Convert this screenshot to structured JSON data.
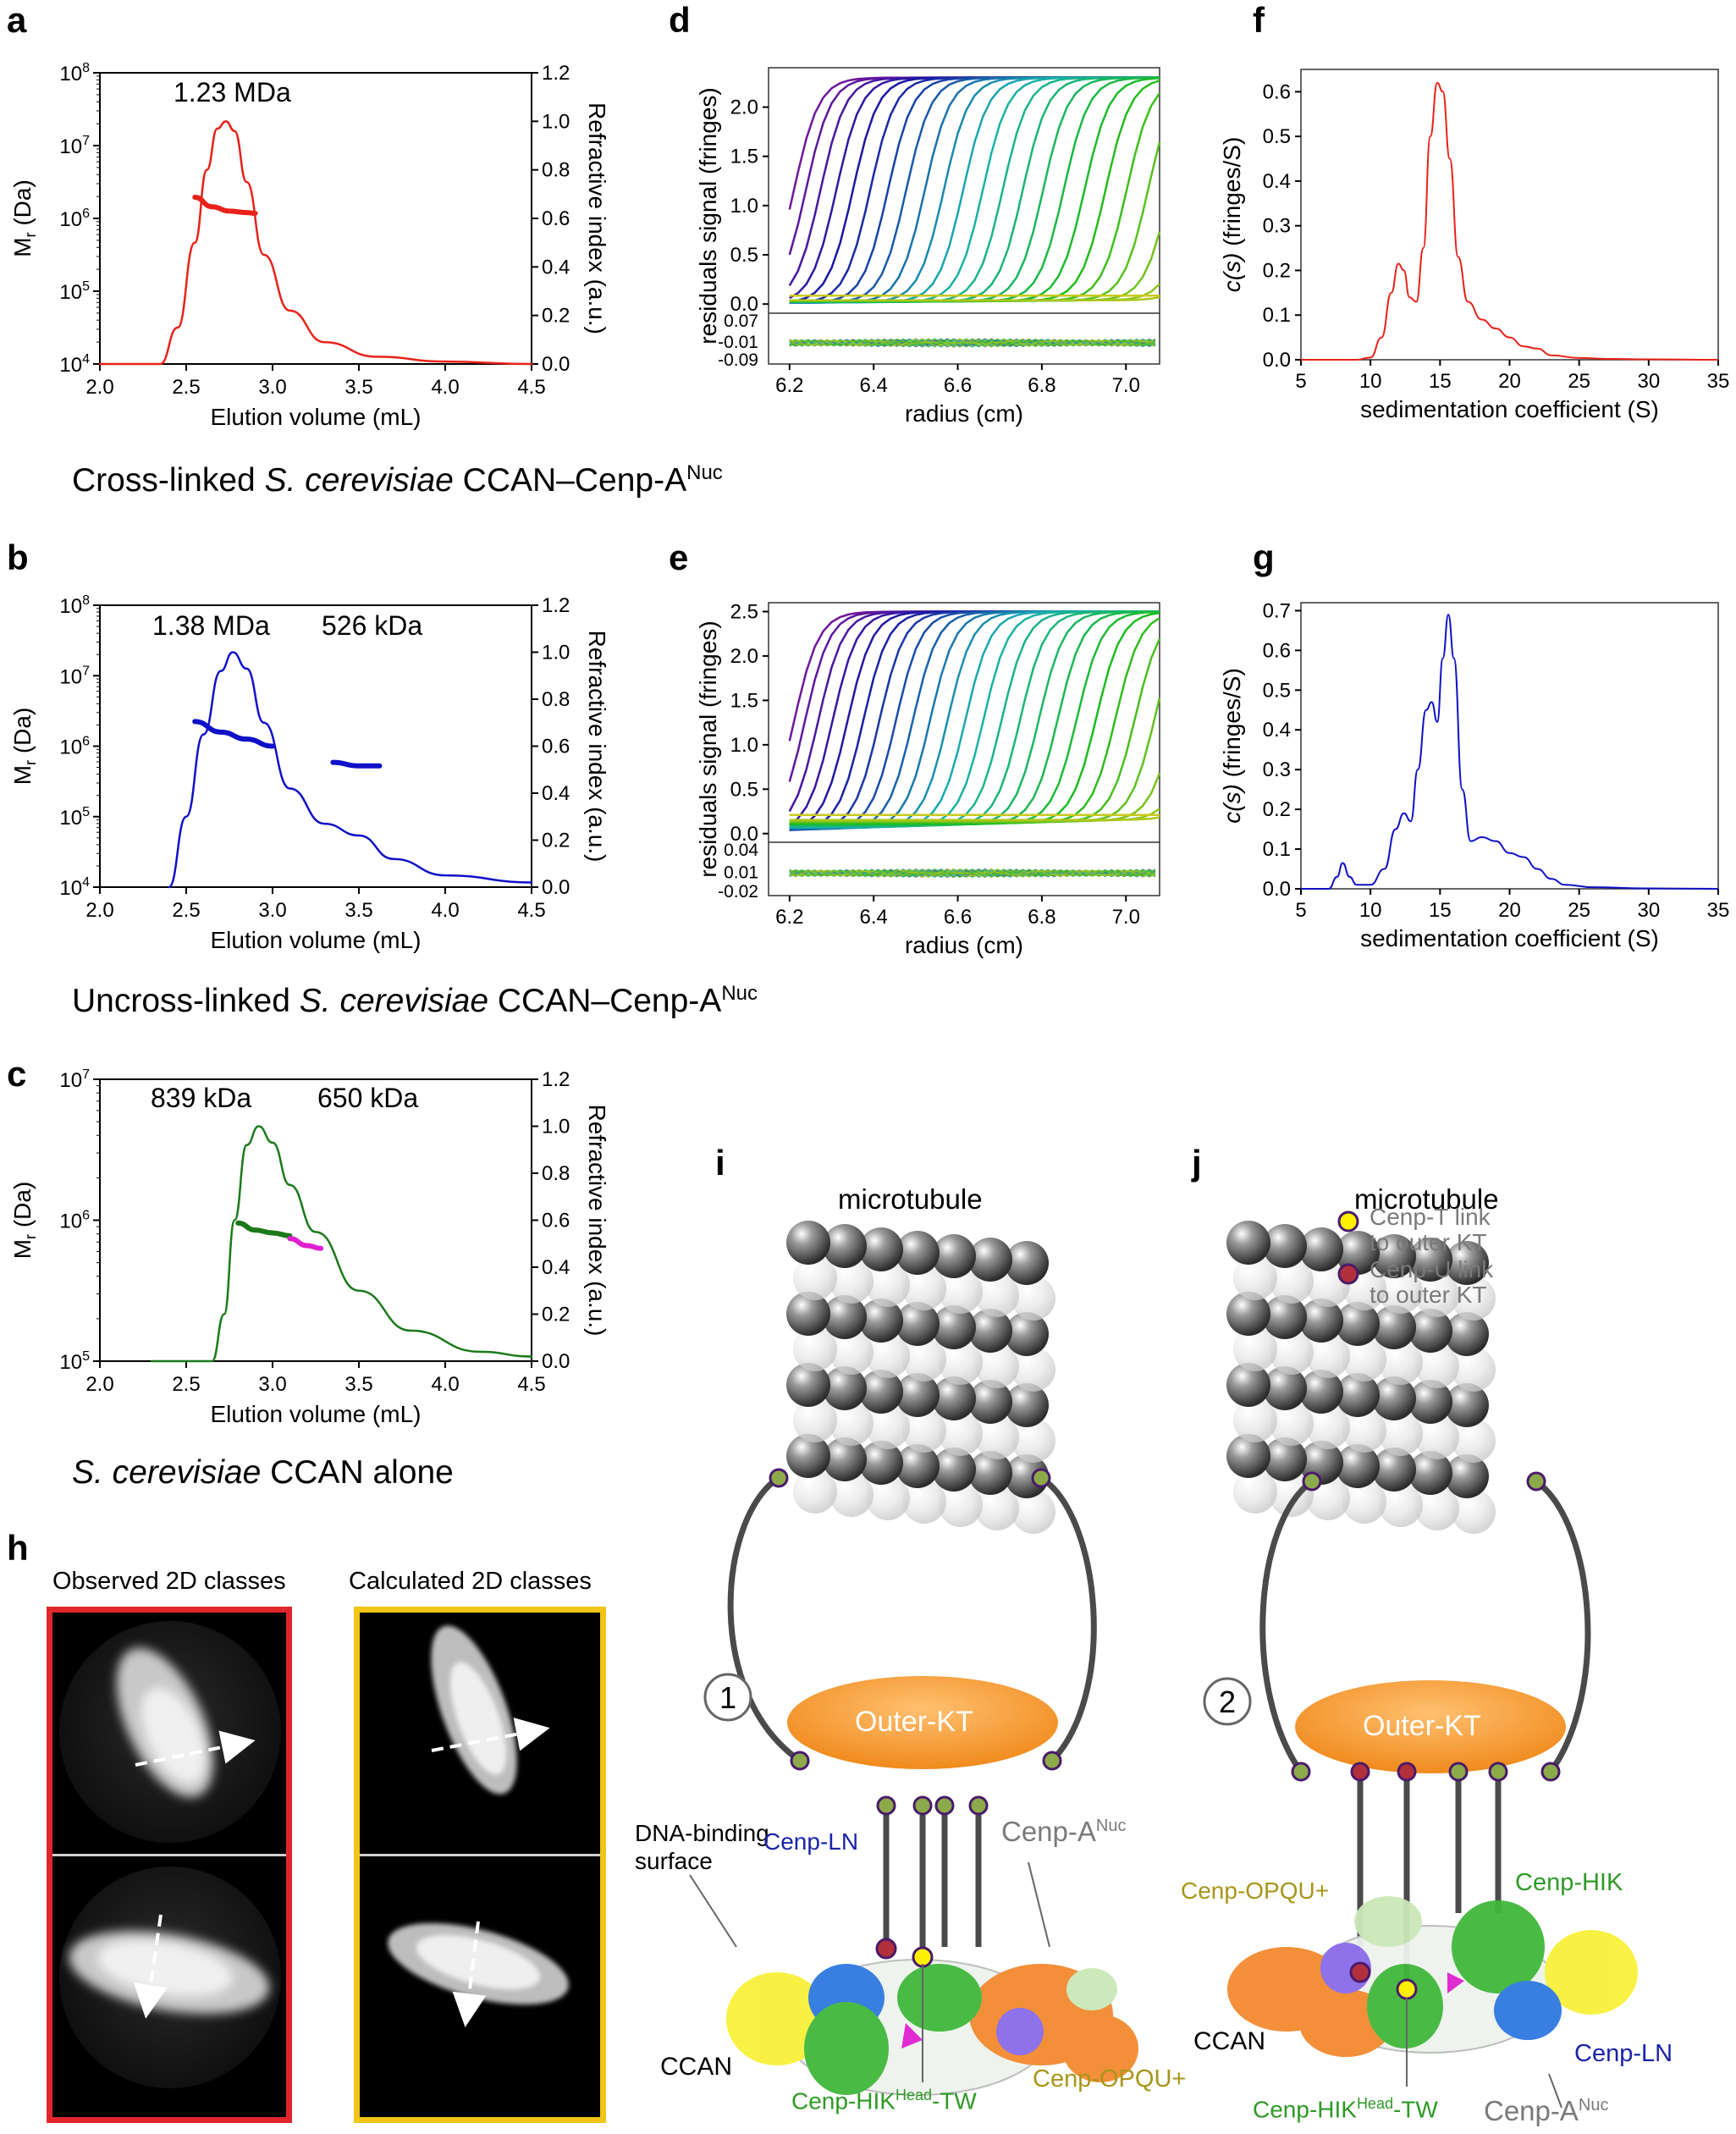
{
  "panels": {
    "a": "a",
    "b": "b",
    "c": "c",
    "d": "d",
    "e": "e",
    "f": "f",
    "g": "g",
    "h": "h",
    "i": "i",
    "j": "j"
  },
  "captions": {
    "ab_pre": "Cross-linked ",
    "ab_species": "S. cerevisiae",
    "ab_post": " CCAN–Cenp-A",
    "ab_sup": "Nuc",
    "bc_pre": "Uncross-linked ",
    "bc_species": "S. cerevisiae",
    "bc_post": " CCAN–Cenp-A",
    "bc_sup": "Nuc",
    "c_species": "S. cerevisiae",
    "c_post": " CCAN alone"
  },
  "colors": {
    "red": "#e8221a",
    "blue": "#1010c8",
    "green": "#1a7a1a",
    "magenta": "#e020d0",
    "orange": "#f39a30"
  },
  "chart_data": [
    {
      "id": "a",
      "type": "line",
      "xlabel": "Elution volume (mL)",
      "ylabel_left": "Mr (Da)",
      "ylabel_right": "Refractive index (a.u.)",
      "x_ticks": [
        "2.0",
        "2.5",
        "3.0",
        "3.5",
        "4.0",
        "4.5"
      ],
      "xlim": [
        2.0,
        4.5
      ],
      "yleft_ticks": [
        "10^4",
        "10^5",
        "10^6",
        "10^7",
        "10^8"
      ],
      "ylim_left_log": [
        4,
        8
      ],
      "yright_ticks": [
        "0.0",
        "0.2",
        "0.4",
        "0.6",
        "0.8",
        "1.0",
        "1.2"
      ],
      "ylim_right": [
        0,
        1.2
      ],
      "annotation": "1.23 MDa",
      "series": [
        {
          "axis": "right",
          "color": "#e8221a",
          "x": [
            2.0,
            2.35,
            2.45,
            2.55,
            2.62,
            2.68,
            2.73,
            2.78,
            2.85,
            2.95,
            3.1,
            3.3,
            3.6,
            4.0,
            4.5
          ],
          "y": [
            0,
            0,
            0.15,
            0.5,
            0.8,
            0.97,
            1.0,
            0.96,
            0.75,
            0.45,
            0.22,
            0.09,
            0.03,
            0.01,
            0
          ]
        },
        {
          "axis": "left",
          "color": "#e8221a",
          "x": [
            2.55,
            2.65,
            2.75,
            2.85,
            2.9
          ],
          "y": [
            6.29,
            6.16,
            6.1,
            6.08,
            6.07
          ]
        }
      ]
    },
    {
      "id": "b",
      "type": "line",
      "xlabel": "Elution volume (mL)",
      "ylabel_left": "Mr (Da)",
      "ylabel_right": "Refractive index (a.u.)",
      "x_ticks": [
        "2.0",
        "2.5",
        "3.0",
        "3.5",
        "4.0",
        "4.5"
      ],
      "xlim": [
        2.0,
        4.5
      ],
      "yleft_ticks": [
        "10^4",
        "10^5",
        "10^6",
        "10^7",
        "10^8"
      ],
      "ylim_left_log": [
        4,
        8
      ],
      "yright_ticks": [
        "0.0",
        "0.2",
        "0.4",
        "0.6",
        "0.8",
        "1.0",
        "1.2"
      ],
      "ylim_right": [
        0,
        1.2
      ],
      "annotations": [
        "1.38 MDa",
        "526 kDa"
      ],
      "series": [
        {
          "axis": "right",
          "color": "#1010c8",
          "x": [
            2.4,
            2.5,
            2.6,
            2.7,
            2.77,
            2.85,
            2.95,
            3.1,
            3.3,
            3.5,
            3.7,
            4.0,
            4.5
          ],
          "y": [
            0,
            0.3,
            0.65,
            0.92,
            1.0,
            0.93,
            0.7,
            0.42,
            0.27,
            0.22,
            0.12,
            0.05,
            0.02
          ]
        },
        {
          "axis": "left",
          "color": "#1010c8",
          "x": [
            2.55,
            2.7,
            2.85,
            3.0
          ],
          "y": [
            6.35,
            6.2,
            6.1,
            6.0
          ]
        },
        {
          "axis": "left",
          "color": "#1010c8",
          "x": [
            3.35,
            3.5,
            3.62
          ],
          "y": [
            5.77,
            5.72,
            5.72
          ]
        }
      ]
    },
    {
      "id": "c",
      "type": "line",
      "xlabel": "Elution volume (mL)",
      "ylabel_left": "Mr (Da)",
      "ylabel_right": "Refractive index (a.u.)",
      "x_ticks": [
        "2.0",
        "2.5",
        "3.0",
        "3.5",
        "4.0",
        "4.5"
      ],
      "xlim": [
        2.0,
        4.5
      ],
      "yleft_ticks": [
        "10^5",
        "10^6",
        "10^7"
      ],
      "ylim_left_log": [
        5,
        7
      ],
      "yright_ticks": [
        "0.0",
        "0.2",
        "0.4",
        "0.6",
        "0.8",
        "1.0",
        "1.2"
      ],
      "ylim_right": [
        0,
        1.2
      ],
      "annotations": [
        "839 kDa",
        "650 kDa"
      ],
      "series": [
        {
          "axis": "right",
          "color": "#1a7a1a",
          "x": [
            2.3,
            2.65,
            2.72,
            2.78,
            2.85,
            2.92,
            3.0,
            3.1,
            3.25,
            3.5,
            3.8,
            4.2,
            4.5
          ],
          "y": [
            0,
            0,
            0.2,
            0.6,
            0.92,
            1.0,
            0.93,
            0.75,
            0.55,
            0.3,
            0.13,
            0.04,
            0.02
          ]
        },
        {
          "axis": "left",
          "color": "#1a7a1a",
          "x": [
            2.8,
            2.9,
            3.0,
            3.1
          ],
          "y": [
            5.98,
            5.93,
            5.91,
            5.89
          ]
        },
        {
          "axis": "left",
          "color": "#e020d0",
          "x": [
            3.1,
            3.2,
            3.28
          ],
          "y": [
            5.87,
            5.82,
            5.8
          ]
        }
      ]
    },
    {
      "id": "d",
      "type": "line",
      "xlabel": "radius (cm)",
      "ylabel": "residuals signal (fringes)",
      "x_ticks": [
        "6.2",
        "6.4",
        "6.6",
        "6.8",
        "7.0"
      ],
      "xlim": [
        6.15,
        7.08
      ],
      "y_ticks": [
        "0.0",
        "0.5",
        "1.0",
        "1.5",
        "2.0"
      ],
      "ylim": [
        -0.05,
        2.4
      ],
      "residual_ticks": [
        "0.07",
        "-0.01",
        "-0.09"
      ],
      "plateau": 2.3,
      "n_scans": 24
    },
    {
      "id": "e",
      "type": "line",
      "xlabel": "radius (cm)",
      "ylabel": "residuals signal (fringes)",
      "x_ticks": [
        "6.2",
        "6.4",
        "6.6",
        "6.8",
        "7.0"
      ],
      "xlim": [
        6.15,
        7.08
      ],
      "y_ticks": [
        "0.0",
        "0.5",
        "1.0",
        "1.5",
        "2.0",
        "2.5"
      ],
      "ylim": [
        -0.05,
        2.6
      ],
      "residual_ticks": [
        "0.04",
        "0.01",
        "-0.02"
      ],
      "plateau": 2.5,
      "n_scans": 26
    },
    {
      "id": "f",
      "type": "line",
      "xlabel": "sedimentation coefficient (S)",
      "ylabel": "c(s) (fringes/S)",
      "x_ticks": [
        "5",
        "10",
        "15",
        "20",
        "25",
        "30",
        "35"
      ],
      "xlim": [
        5,
        35
      ],
      "y_ticks": [
        "0.0",
        "0.1",
        "0.2",
        "0.3",
        "0.4",
        "0.5",
        "0.6"
      ],
      "ylim": [
        0,
        0.65
      ],
      "series": [
        {
          "color": "#e8221a",
          "x": [
            5,
            9,
            10,
            10.8,
            11.5,
            12,
            12.4,
            12.8,
            13.3,
            13.8,
            14.3,
            14.8,
            15.2,
            15.7,
            16.3,
            17,
            18,
            19,
            20,
            21,
            22,
            23,
            25,
            27,
            30,
            35
          ],
          "y": [
            0,
            0,
            0.005,
            0.05,
            0.15,
            0.215,
            0.2,
            0.14,
            0.13,
            0.25,
            0.5,
            0.62,
            0.6,
            0.45,
            0.23,
            0.13,
            0.09,
            0.07,
            0.05,
            0.03,
            0.025,
            0.01,
            0.004,
            0.002,
            0.001,
            0
          ]
        }
      ]
    },
    {
      "id": "g",
      "type": "line",
      "xlabel": "sedimentation coefficient (S)",
      "ylabel": "c(s) (fringes/S)",
      "x_ticks": [
        "5",
        "10",
        "15",
        "20",
        "25",
        "30",
        "35"
      ],
      "xlim": [
        5,
        35
      ],
      "y_ticks": [
        "0.0",
        "0.1",
        "0.2",
        "0.3",
        "0.4",
        "0.5",
        "0.6",
        "0.7"
      ],
      "ylim": [
        0,
        0.72
      ],
      "series": [
        {
          "color": "#1010c8",
          "x": [
            5,
            7,
            7.6,
            8,
            8.5,
            9,
            10,
            11,
            11.8,
            12.4,
            12.9,
            13.4,
            14,
            14.4,
            14.8,
            15.2,
            15.6,
            16,
            16.6,
            17.2,
            18,
            19,
            20,
            21,
            22,
            23,
            24,
            26,
            30,
            35
          ],
          "y": [
            0,
            0,
            0.03,
            0.065,
            0.03,
            0.01,
            0.01,
            0.05,
            0.15,
            0.19,
            0.17,
            0.3,
            0.45,
            0.47,
            0.42,
            0.58,
            0.69,
            0.58,
            0.25,
            0.12,
            0.13,
            0.12,
            0.09,
            0.08,
            0.05,
            0.025,
            0.01,
            0.004,
            0.001,
            0
          ]
        }
      ]
    }
  ],
  "h": {
    "observed_title": "Observed 2D classes",
    "calculated_title": "Calculated 2D classes",
    "observed_border": "#e0262a",
    "calculated_border": "#f0c419"
  },
  "model_i": {
    "microtubule": "microtubule",
    "outer_kt": "Outer-KT",
    "number": "1",
    "ccan": "CCAN",
    "dna_binding": "DNA-binding",
    "dna_binding2": "surface",
    "cenp_ln": "Cenp-LN",
    "cenp_anuc": "Cenp-A",
    "cenp_anuc_sup": "Nuc",
    "cenp_hik_pre": "Cenp-HIK",
    "cenp_hik_sup": "Head",
    "cenp_hik_post": "-TW",
    "cenp_opqu": "Cenp-OPQU+"
  },
  "model_j": {
    "microtubule": "microtubule",
    "outer_kt": "Outer-KT",
    "number": "2",
    "ccan": "CCAN",
    "cenp_opqu": "Cenp-OPQU+",
    "cenp_hik": "Cenp-HIK",
    "cenp_ln": "Cenp-LN",
    "cenp_anuc": "Cenp-A",
    "cenp_anuc_sup": "Nuc",
    "cenp_hik_pre": "Cenp-HIK",
    "cenp_hik_sup": "Head",
    "cenp_hik_post": "-TW"
  },
  "legend": {
    "t_link_1": "Cenp-T link",
    "t_link_2": "to outer KT",
    "u_link_1": "Cenp-U link",
    "u_link_2": "to outer KT",
    "t_color": "#fff000",
    "u_color": "#b2303c"
  }
}
